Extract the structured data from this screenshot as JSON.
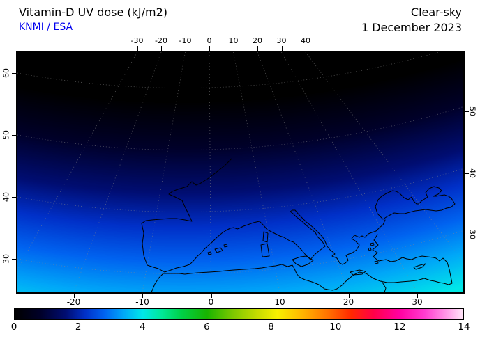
{
  "header": {
    "title": "Vitamin-D UV dose (kJ/m2)",
    "source": "KNMI / ESA",
    "condition": "Clear-sky",
    "date": "1 December 2023"
  },
  "colors": {
    "title_text": "#000000",
    "source_text": "#0000ee",
    "frame": "#000000",
    "graticule": "#8a8a8a",
    "coastline": "#000000"
  },
  "chart_data": {
    "type": "heatmap",
    "title": "Vitamin-D UV dose (kJ/m2)",
    "provider": "KNMI / ESA",
    "condition": "Clear-sky",
    "date": "1 December 2023",
    "units": "kJ/m2",
    "projection": "oblique satellite view of Europe and the Mediterranean",
    "lon_ticks_top": [
      -30,
      -20,
      -10,
      0,
      10,
      20,
      30,
      40
    ],
    "lon_ticks_bottom": [
      -20,
      -10,
      0,
      10,
      20,
      30
    ],
    "lat_ticks_left": [
      60,
      50,
      40,
      30
    ],
    "lat_ticks_right": [
      50,
      40,
      30
    ],
    "colorbar": {
      "min": 0,
      "max": 14,
      "ticks": [
        0,
        2,
        4,
        6,
        8,
        10,
        12,
        14
      ],
      "stops": [
        {
          "v": 0,
          "c": "#000000"
        },
        {
          "v": 0.8,
          "c": "#000028"
        },
        {
          "v": 1.6,
          "c": "#000d72"
        },
        {
          "v": 2.2,
          "c": "#0030c8"
        },
        {
          "v": 2.8,
          "c": "#0063f0"
        },
        {
          "v": 3.4,
          "c": "#00a8f8"
        },
        {
          "v": 4,
          "c": "#00e8e8"
        },
        {
          "v": 4.6,
          "c": "#00e896"
        },
        {
          "v": 5.2,
          "c": "#00d048"
        },
        {
          "v": 6,
          "c": "#18b400"
        },
        {
          "v": 6.8,
          "c": "#7cc800"
        },
        {
          "v": 7.6,
          "c": "#c8dc00"
        },
        {
          "v": 8.2,
          "c": "#f8f000"
        },
        {
          "v": 9,
          "c": "#ffb400"
        },
        {
          "v": 9.8,
          "c": "#ff7000"
        },
        {
          "v": 10.5,
          "c": "#ff2800"
        },
        {
          "v": 11.2,
          "c": "#ff0048"
        },
        {
          "v": 12,
          "c": "#ff00a0"
        },
        {
          "v": 12.8,
          "c": "#ff3cd0"
        },
        {
          "v": 13.5,
          "c": "#ff9ce8"
        },
        {
          "v": 14,
          "c": "#ffe6f8"
        }
      ]
    },
    "field": {
      "description": "Clear-sky vitamin-D UV dose: ~0 kJ/m2 in the north (top of map, black) increasing smoothly southward to ~4 kJ/m2 at the southern edge (cyan-green corners)",
      "approx_dose_by_latitude": [
        {
          "lat": 60,
          "dose": 0.1
        },
        {
          "lat": 55,
          "dose": 0.5
        },
        {
          "lat": 50,
          "dose": 1.0
        },
        {
          "lat": 45,
          "dose": 1.7
        },
        {
          "lat": 40,
          "dose": 2.4
        },
        {
          "lat": 35,
          "dose": 3.1
        },
        {
          "lat": 30,
          "dose": 3.8
        }
      ]
    }
  }
}
